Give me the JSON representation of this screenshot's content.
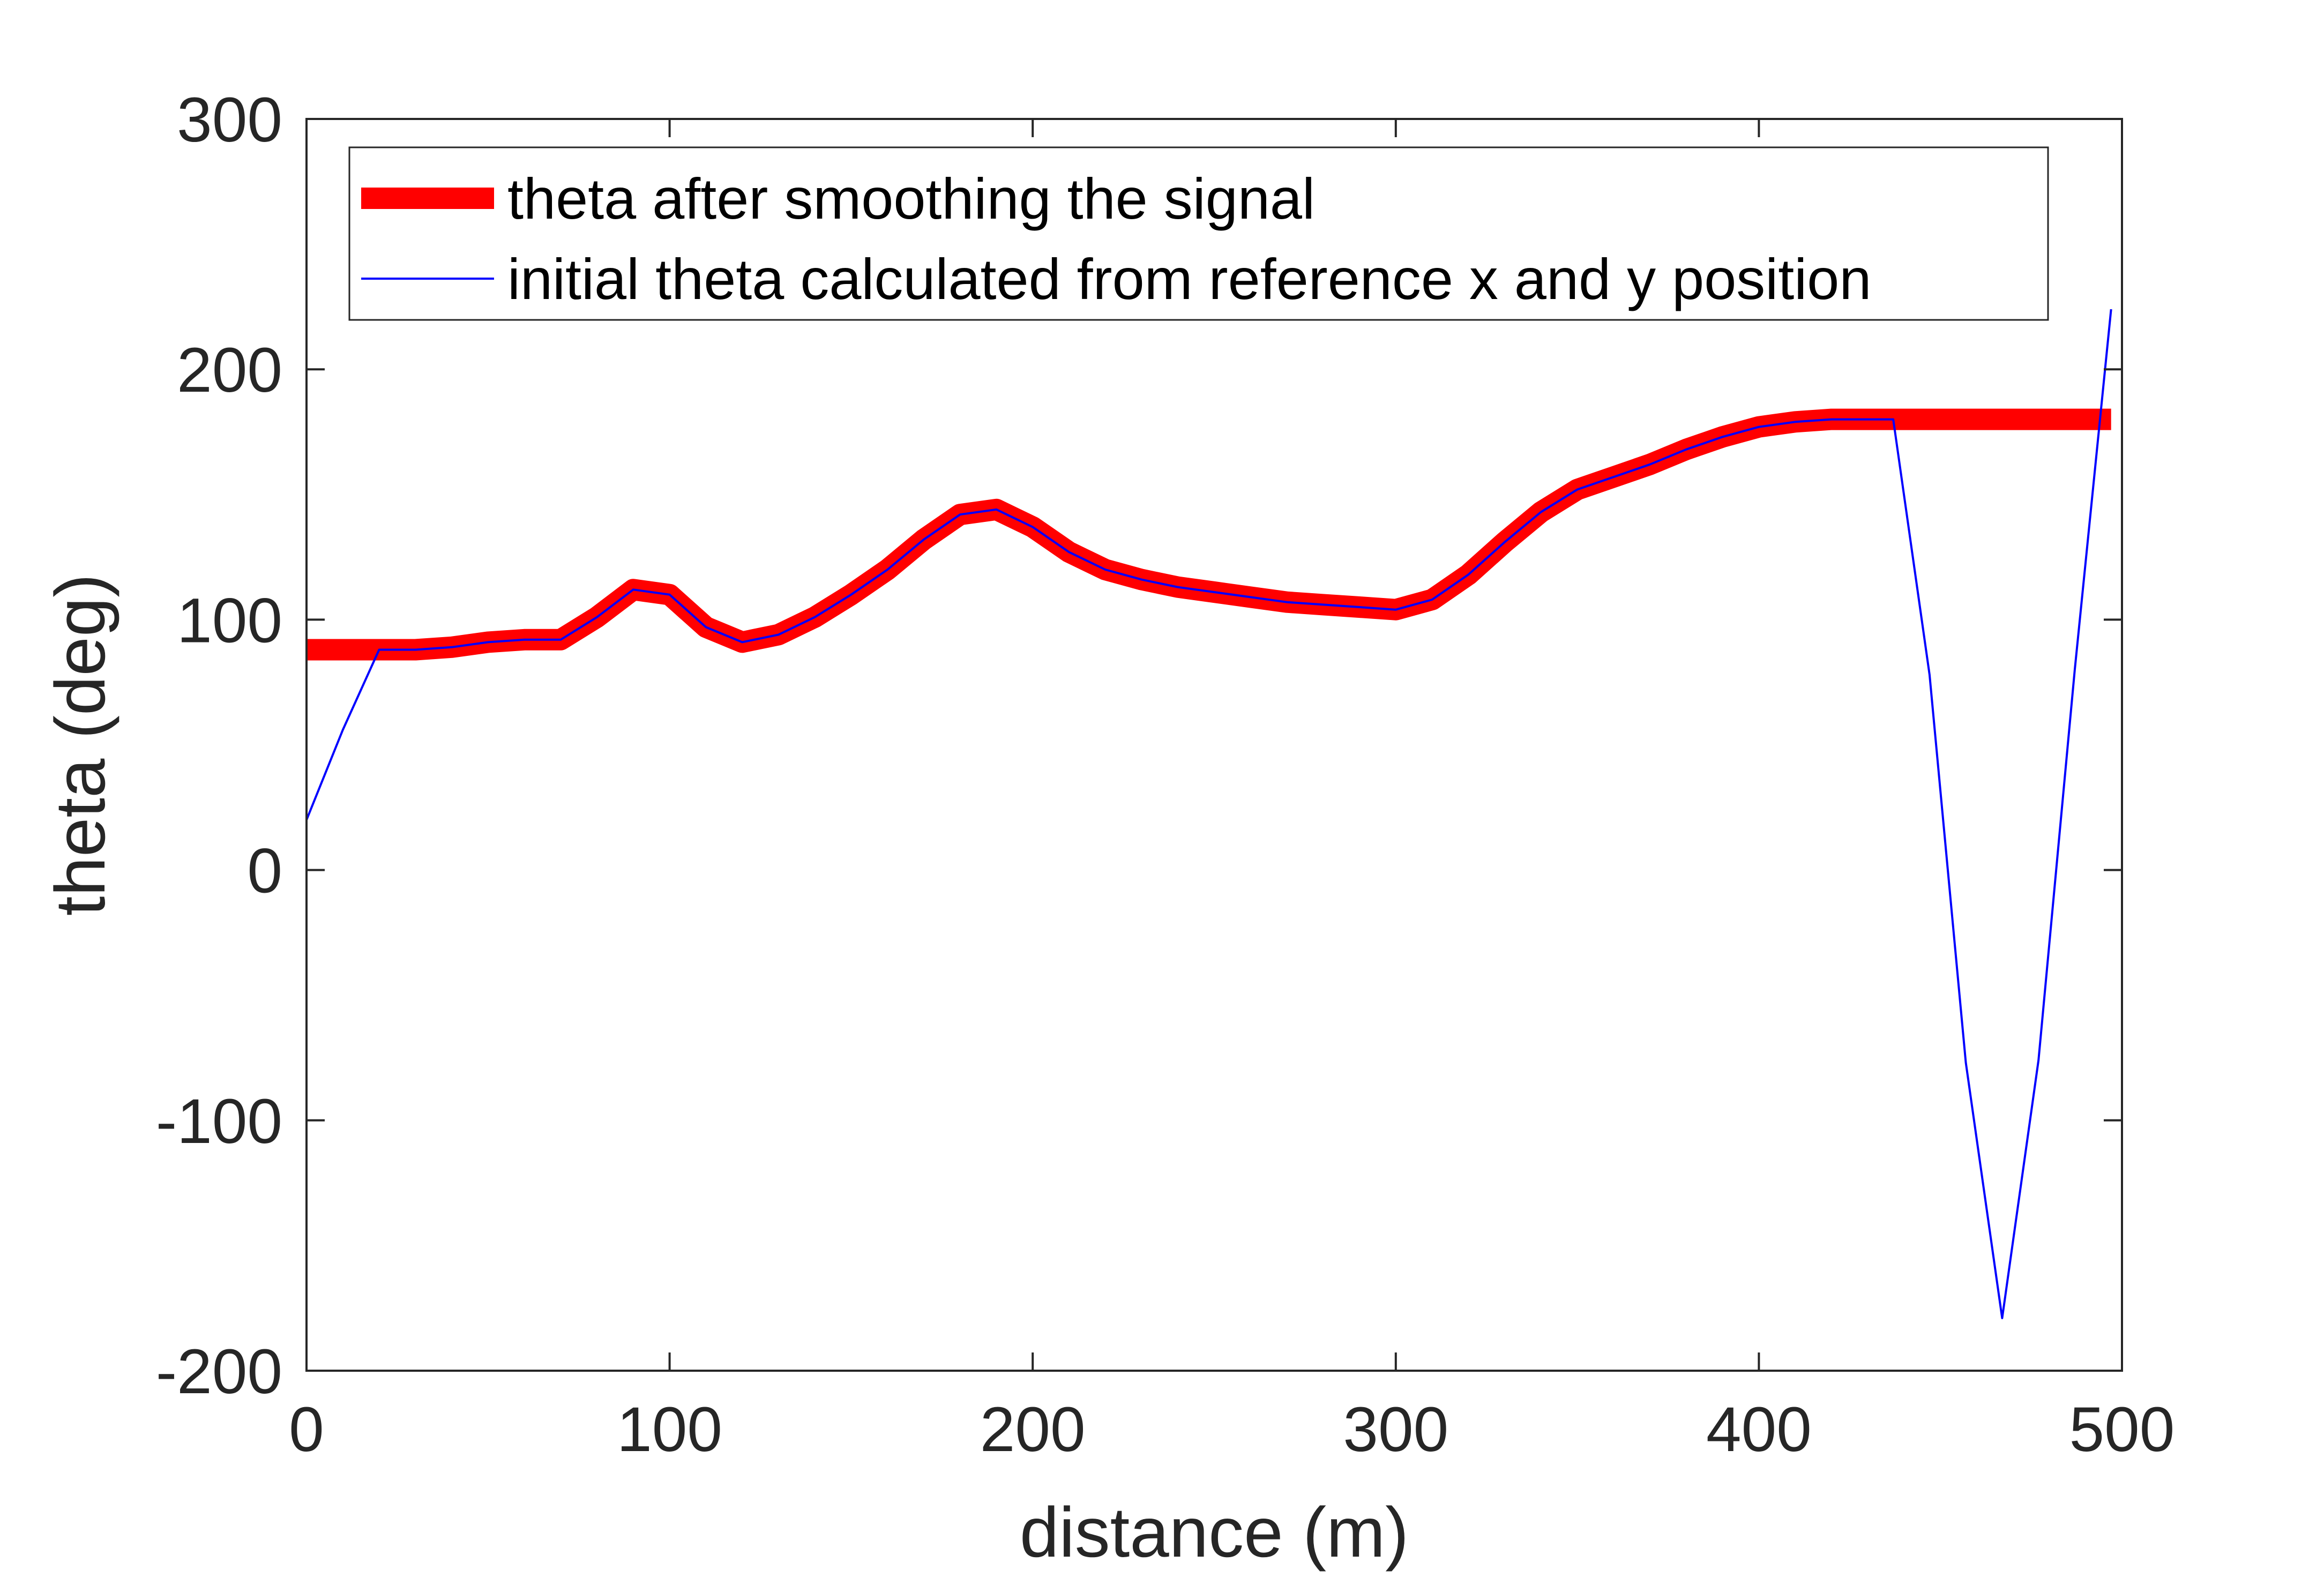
{
  "chart_data": {
    "type": "line",
    "title": "",
    "xlabel": "distance (m)",
    "ylabel": "theta (deg)",
    "xlim": [
      0,
      500
    ],
    "ylim": [
      -200,
      300
    ],
    "xticks": [
      0,
      100,
      200,
      300,
      400,
      500
    ],
    "yticks": [
      -200,
      -100,
      0,
      100,
      200,
      300
    ],
    "xtick_labels": [
      "0",
      "100",
      "200",
      "300",
      "400",
      "500"
    ],
    "ytick_labels": [
      "-200",
      "-100",
      "0",
      "100",
      "200",
      "300"
    ],
    "grid": false,
    "legend_position": "top-left",
    "series": [
      {
        "name": "theta after smoothing the signal",
        "color": "#ff0000",
        "style": "thick",
        "x": [
          0,
          10,
          20,
          30,
          40,
          50,
          60,
          70,
          80,
          90,
          100,
          110,
          120,
          130,
          140,
          150,
          160,
          170,
          180,
          190,
          200,
          210,
          220,
          230,
          240,
          250,
          260,
          270,
          280,
          290,
          300,
          310,
          320,
          330,
          340,
          350,
          360,
          370,
          380,
          390,
          400,
          410,
          420,
          430,
          440,
          450,
          460,
          470,
          480,
          490,
          497
        ],
        "y": [
          88,
          88,
          88,
          88,
          89,
          91,
          92,
          92,
          101,
          112,
          110,
          97,
          91,
          94,
          101,
          110,
          120,
          132,
          142,
          144,
          137,
          127,
          120,
          116,
          113,
          111,
          109,
          107,
          106,
          105,
          104,
          108,
          118,
          131,
          143,
          152,
          157,
          162,
          168,
          173,
          177,
          179,
          180,
          180,
          180,
          180,
          180,
          180,
          180,
          180,
          180
        ]
      },
      {
        "name": "initial theta calculated from reference x and y position",
        "color": "#0000ff",
        "style": "thin",
        "x": [
          0,
          10,
          20,
          30,
          40,
          50,
          60,
          70,
          80,
          90,
          100,
          110,
          120,
          130,
          140,
          150,
          160,
          170,
          180,
          190,
          200,
          210,
          220,
          230,
          240,
          250,
          260,
          270,
          280,
          290,
          300,
          310,
          320,
          330,
          340,
          350,
          360,
          370,
          380,
          390,
          400,
          410,
          420,
          430,
          437,
          447,
          457,
          467,
          477,
          487,
          497
        ],
        "y": [
          20,
          56,
          88,
          88,
          89,
          91,
          92,
          92,
          101,
          112,
          110,
          97,
          91,
          94,
          101,
          110,
          120,
          132,
          142,
          144,
          137,
          127,
          120,
          116,
          113,
          111,
          109,
          107,
          106,
          105,
          104,
          108,
          118,
          131,
          143,
          152,
          157,
          162,
          168,
          173,
          177,
          179,
          180,
          180,
          180,
          78,
          -77,
          -179,
          -76,
          80,
          224
        ]
      }
    ]
  }
}
